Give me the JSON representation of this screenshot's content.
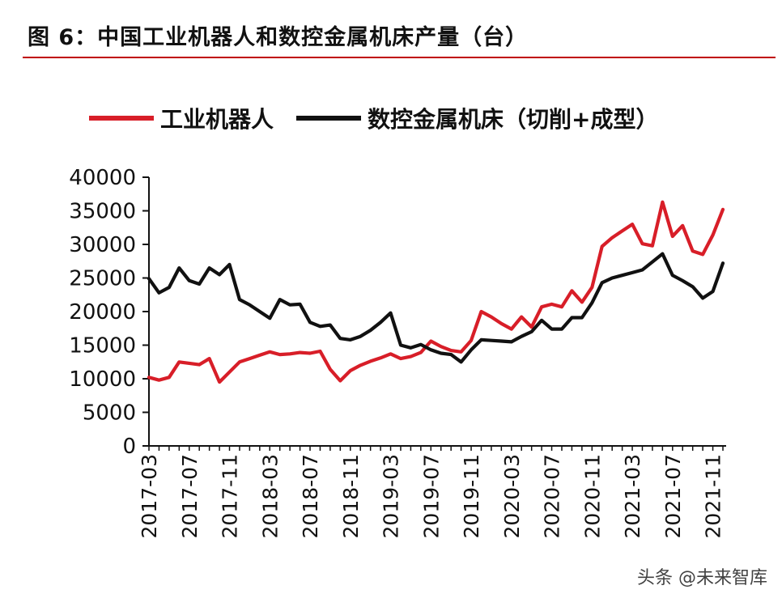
{
  "header": {
    "title": "图 6：中国工业机器人和数控金属机床产量（台）"
  },
  "colors": {
    "robots": "#d81e28",
    "machine_tools": "#111111",
    "title_rule": "#c00000"
  },
  "watermark": "头条 @未来智库",
  "chart_data": {
    "type": "line",
    "title": "",
    "xlabel": "",
    "ylabel": "",
    "ylim": [
      0,
      40000
    ],
    "yticks": [
      0,
      5000,
      10000,
      15000,
      20000,
      25000,
      30000,
      35000,
      40000
    ],
    "xtick_labels": [
      "2017-03",
      "2017-07",
      "2017-11",
      "2018-03",
      "2018-07",
      "2018-11",
      "2019-03",
      "2019-07",
      "2019-11",
      "2020-03",
      "2020-07",
      "2020-11",
      "2021-03",
      "2021-07",
      "2021-11"
    ],
    "legend_position": "top-left",
    "grid": false,
    "x": [
      "2017-03",
      "2017-04",
      "2017-05",
      "2017-06",
      "2017-07",
      "2017-08",
      "2017-09",
      "2017-10",
      "2017-11",
      "2017-12",
      "2018-01",
      "2018-02",
      "2018-03",
      "2018-04",
      "2018-05",
      "2018-06",
      "2018-07",
      "2018-08",
      "2018-09",
      "2018-10",
      "2018-11",
      "2018-12",
      "2019-01",
      "2019-02",
      "2019-03",
      "2019-04",
      "2019-05",
      "2019-06",
      "2019-07",
      "2019-08",
      "2019-09",
      "2019-10",
      "2019-11",
      "2019-12",
      "2020-01",
      "2020-02",
      "2020-03",
      "2020-04",
      "2020-05",
      "2020-06",
      "2020-07",
      "2020-08",
      "2020-09",
      "2020-10",
      "2020-11",
      "2020-12",
      "2021-01",
      "2021-02",
      "2021-03",
      "2021-04",
      "2021-05",
      "2021-06",
      "2021-07",
      "2021-08",
      "2021-09",
      "2021-10",
      "2021-11",
      "2021-12"
    ],
    "series": [
      {
        "name": "工业机器人",
        "values": [
          10200,
          9800,
          10200,
          12500,
          12300,
          12100,
          13000,
          9500,
          11000,
          12500,
          13000,
          13500,
          14000,
          13600,
          13700,
          13900,
          13800,
          14100,
          11400,
          9700,
          11200,
          12000,
          12600,
          13100,
          13700,
          13000,
          13300,
          13900,
          15600,
          14800,
          14200,
          14000,
          15700,
          20000,
          19200,
          18200,
          17400,
          19200,
          17700,
          20700,
          21100,
          20700,
          23100,
          21400,
          23600,
          29700,
          31000,
          32000,
          33000,
          30100,
          29800,
          36300,
          31200,
          32800,
          29000,
          28500,
          31400,
          35200
        ]
      },
      {
        "name": "数控金属机床（切削+成型）",
        "values": [
          24900,
          22800,
          23600,
          26500,
          24600,
          24100,
          26500,
          25500,
          27000,
          21800,
          21000,
          20000,
          19000,
          21800,
          21000,
          21100,
          18400,
          17800,
          18000,
          16000,
          15800,
          16300,
          17200,
          18400,
          19800,
          15000,
          14600,
          15100,
          14300,
          13800,
          13600,
          12500,
          14300,
          15800,
          15700,
          15600,
          15500,
          16300,
          17000,
          18700,
          17400,
          17400,
          19100,
          19100,
          21300,
          24300,
          25000,
          25400,
          25800,
          26200,
          27400,
          28600,
          25400,
          24600,
          23700,
          22000,
          23000,
          27200
        ]
      }
    ]
  }
}
